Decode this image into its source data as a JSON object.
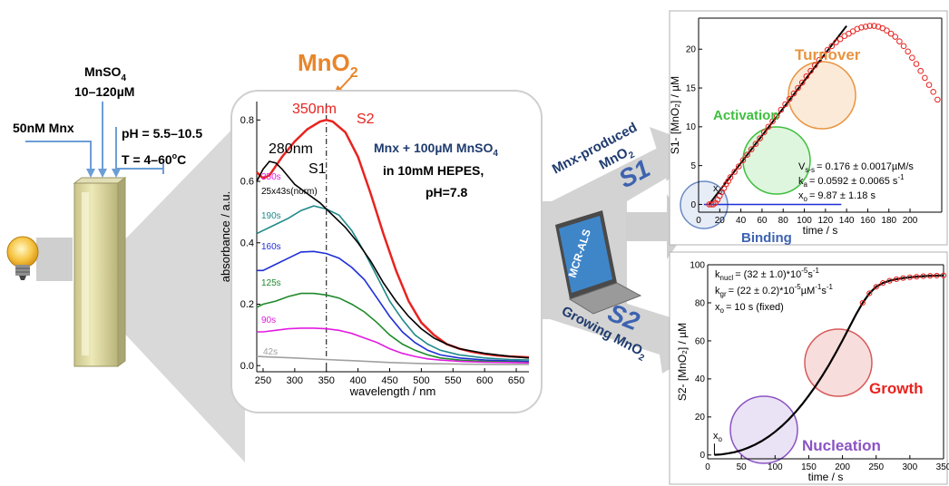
{
  "left": {
    "reagent": {
      "name": "MnSO",
      "sub": "4",
      "range": "10–120µM"
    },
    "enzyme": "50nM Mnx",
    "ph": "pH = 5.5–10.5",
    "temp": {
      "prefix": "T = 4–60",
      "sup": "o",
      "suffix": "C"
    }
  },
  "center": {
    "product": {
      "name": "MnO",
      "sub": "2"
    },
    "peak350": "350nm",
    "peak280": "280nm",
    "s1": "S1",
    "s2": "S2",
    "norm_label": "25x43s(norm)",
    "conditions": {
      "line1a": "Mnx + 100µM MnSO",
      "line1sub": "4",
      "line2": "in  10mM HEPES,",
      "line3": "pH=7.8"
    },
    "time_labels": [
      "350s",
      "190s",
      "160s",
      "125s",
      "90s",
      "42s"
    ]
  },
  "middle": {
    "software": "MCR-ALS",
    "arrow_s1": {
      "line1": "Mnx-produced",
      "line2": "MnO",
      "line2sub": "2",
      "tag": "S1"
    },
    "arrow_s2": {
      "line1": "Growing MnO",
      "line1sub": "2",
      "tag": "S2"
    }
  },
  "colors": {
    "red": "#e8231f",
    "teal": "#1f8a8a",
    "blue": "#1f2fd6",
    "green": "#1e8a2a",
    "magenta": "#e21ce0",
    "gray": "#a0a0a0",
    "navy": "#1f3b6e",
    "orange": "#e89440",
    "phases_green": "#3fbf3f",
    "purple": "#8b53c4"
  },
  "chart_data": [
    {
      "type": "line",
      "xlabel": "wavelength / nm",
      "ylabel": "absorbance / a.u.",
      "xlim": [
        240,
        670
      ],
      "ylim": [
        -0.02,
        0.86
      ],
      "xticks": [
        250,
        300,
        350,
        400,
        450,
        500,
        550,
        600,
        650
      ],
      "yticks": [
        0.0,
        0.2,
        0.4,
        0.6,
        0.8
      ],
      "series": [
        {
          "name": "350s",
          "color": "#e8231f",
          "x": [
            240,
            250,
            260,
            280,
            300,
            320,
            340,
            350,
            360,
            380,
            400,
            420,
            440,
            460,
            480,
            500,
            520,
            540,
            560,
            580,
            600,
            620,
            640,
            660,
            670
          ],
          "y": [
            0.63,
            0.61,
            0.62,
            0.68,
            0.73,
            0.77,
            0.795,
            0.8,
            0.795,
            0.76,
            0.68,
            0.56,
            0.43,
            0.31,
            0.21,
            0.14,
            0.1,
            0.07,
            0.055,
            0.045,
            0.038,
            0.033,
            0.03,
            0.028,
            0.027
          ]
        },
        {
          "name": "190s",
          "color": "#1f8a8a",
          "x": [
            240,
            250,
            270,
            290,
            310,
            330,
            350,
            370,
            390,
            410,
            430,
            450,
            470,
            490,
            510,
            530,
            560,
            600,
            640,
            670
          ],
          "y": [
            0.43,
            0.44,
            0.46,
            0.48,
            0.505,
            0.52,
            0.51,
            0.49,
            0.44,
            0.37,
            0.29,
            0.21,
            0.15,
            0.1,
            0.07,
            0.05,
            0.035,
            0.025,
            0.02,
            0.018
          ]
        },
        {
          "name": "160s",
          "color": "#1f2fd6",
          "x": [
            240,
            250,
            270,
            290,
            310,
            330,
            350,
            370,
            390,
            410,
            430,
            450,
            470,
            490,
            510,
            530,
            560,
            600,
            640,
            670
          ],
          "y": [
            0.31,
            0.31,
            0.33,
            0.35,
            0.37,
            0.372,
            0.365,
            0.35,
            0.32,
            0.28,
            0.22,
            0.16,
            0.11,
            0.075,
            0.05,
            0.035,
            0.025,
            0.018,
            0.015,
            0.013
          ]
        },
        {
          "name": "125s",
          "color": "#1e8a2a",
          "x": [
            240,
            250,
            270,
            290,
            310,
            330,
            350,
            370,
            390,
            410,
            430,
            450,
            470,
            490,
            510,
            530,
            560,
            600,
            640,
            670
          ],
          "y": [
            0.19,
            0.2,
            0.21,
            0.225,
            0.235,
            0.235,
            0.23,
            0.22,
            0.2,
            0.175,
            0.14,
            0.1,
            0.07,
            0.05,
            0.035,
            0.025,
            0.018,
            0.014,
            0.012,
            0.01
          ]
        },
        {
          "name": "90s",
          "color": "#e21ce0",
          "x": [
            240,
            250,
            270,
            290,
            310,
            330,
            350,
            370,
            390,
            410,
            430,
            450,
            470,
            490,
            510,
            530,
            560,
            600,
            640,
            670
          ],
          "y": [
            0.11,
            0.11,
            0.115,
            0.12,
            0.122,
            0.122,
            0.12,
            0.115,
            0.105,
            0.09,
            0.075,
            0.055,
            0.04,
            0.03,
            0.022,
            0.018,
            0.014,
            0.011,
            0.01,
            0.009
          ]
        },
        {
          "name": "42s",
          "color": "#a0a0a0",
          "x": [
            240,
            260,
            300,
            350,
            400,
            450,
            500,
            560,
            620,
            670
          ],
          "y": [
            0.03,
            0.028,
            0.025,
            0.02,
            0.015,
            0.01,
            0.007,
            0.005,
            0.004,
            0.004
          ]
        },
        {
          "name": "25x43s(norm)",
          "color": "#000000",
          "x": [
            240,
            250,
            260,
            270,
            280,
            290,
            300,
            320,
            340,
            350,
            360,
            380,
            400,
            420,
            440,
            460,
            480,
            500,
            520,
            540,
            560,
            600,
            640,
            670
          ],
          "y": [
            0.6,
            0.64,
            0.665,
            0.66,
            0.64,
            0.615,
            0.59,
            0.56,
            0.53,
            0.51,
            0.49,
            0.45,
            0.4,
            0.34,
            0.27,
            0.21,
            0.16,
            0.12,
            0.09,
            0.07,
            0.055,
            0.04,
            0.03,
            0.025
          ]
        }
      ]
    },
    {
      "type": "scatter",
      "xlabel": "time / s",
      "ylabel": "S1- [MnO₂] / µM",
      "xlim": [
        0,
        230
      ],
      "ylim": [
        -1,
        24
      ],
      "xticks": [
        0,
        20,
        40,
        60,
        80,
        100,
        120,
        140,
        160,
        180,
        200
      ],
      "yticks": [
        0,
        5,
        10,
        15,
        20
      ],
      "series": [
        {
          "name": "data",
          "color": "#e8231f",
          "x": [
            10,
            12,
            14,
            16,
            18,
            20,
            22,
            24,
            26,
            28,
            30,
            34,
            38,
            42,
            46,
            50,
            54,
            58,
            62,
            66,
            70,
            74,
            78,
            82,
            86,
            90,
            94,
            98,
            102,
            106,
            110,
            114,
            118,
            122,
            126,
            130,
            134,
            138,
            142,
            146,
            150,
            154,
            158,
            162,
            166,
            170,
            174,
            178,
            182,
            186,
            190,
            194,
            198,
            202,
            206,
            210,
            214,
            218,
            222,
            226
          ],
          "y": [
            0,
            0,
            0,
            0.2,
            0.6,
            1.1,
            1.6,
            2.1,
            2.6,
            3.0,
            3.5,
            4.2,
            4.9,
            5.7,
            6.4,
            7.1,
            7.8,
            8.5,
            9.3,
            10.0,
            10.7,
            11.4,
            12.2,
            12.9,
            13.6,
            14.3,
            15.0,
            15.7,
            16.5,
            17.2,
            17.9,
            18.6,
            19.3,
            19.9,
            20.4,
            20.9,
            21.3,
            21.7,
            22.0,
            22.3,
            22.6,
            22.8,
            22.9,
            23.0,
            23.0,
            22.9,
            22.7,
            22.4,
            22.0,
            21.6,
            21.0,
            20.4,
            19.7,
            18.9,
            18.1,
            17.2,
            16.3,
            15.4,
            14.5,
            13.5
          ]
        },
        {
          "name": "fit",
          "color": "#000000",
          "x": [
            9.87,
            140
          ],
          "y": [
            0,
            23.0
          ]
        }
      ],
      "annotations": {
        "vss": "V",
        "vss_sub": "s-s",
        "vss_val": "= 0.176 ± 0.0017µM/s",
        "ka": "k",
        "ka_sub": "a",
        "ka_val": "= 0.0592 ± 0.0065 s",
        "ka_sup": "-1",
        "xo": "x",
        "xo_sub": "o",
        "xo_val": "= 9.87 ± 1.18 s",
        "x0_marker": "x",
        "x0_marker_sub": "o"
      },
      "phases": [
        "Turnover",
        "Activation",
        "Binding"
      ]
    },
    {
      "type": "scatter",
      "xlabel": "time / s",
      "ylabel": "S2- [MnO₂] / µM",
      "xlim": [
        0,
        350
      ],
      "ylim": [
        -2,
        100
      ],
      "xticks": [
        0,
        50,
        100,
        150,
        200,
        250,
        300,
        350
      ],
      "yticks": [
        0,
        20,
        40,
        60,
        80,
        100
      ],
      "series": [
        {
          "name": "data",
          "color": "#e8231f",
          "x": [
            10,
            20,
            30,
            40,
            50,
            60,
            70,
            80,
            90,
            100,
            110,
            120,
            130,
            140,
            150,
            160,
            170,
            180,
            190,
            200,
            210,
            220,
            230,
            240,
            250,
            260,
            270,
            280,
            290,
            300,
            310,
            320,
            330,
            340,
            350
          ],
          "y": [
            0.1,
            0.3,
            0.8,
            1.5,
            2.5,
            3.8,
            5.4,
            7.3,
            9.6,
            12.2,
            15.2,
            18.6,
            22.4,
            26.6,
            31.2,
            36.2,
            41.6,
            47.4,
            53.6,
            60.2,
            67.0,
            73.8,
            80.0,
            85.0,
            88.4,
            90.4,
            91.6,
            92.4,
            93.0,
            93.4,
            93.7,
            94.0,
            94.2,
            94.3,
            94.4
          ]
        }
      ],
      "annotations": {
        "knucl": "k",
        "knucl_sub": "nucl",
        "knucl_val": "= (32 ± 1.0)*10",
        "knucl_sup": "-5",
        "knucl_unit": "s",
        "knucl_unit_sup": "-1",
        "kgr": "k",
        "kgr_sub": "gr",
        "kgr_val": "= (22 ± 0.2)*10",
        "kgr_sup": "-5",
        "kgr_unit": "µM",
        "kgr_unit_sup": "-1",
        "kgr_unit2": "s",
        "kgr_unit2_sup": "-1",
        "xo": "x",
        "xo_sub": "o",
        "xo_val": "= 10 s (fixed)",
        "x0_marker": "x",
        "x0_marker_sub": "o"
      },
      "phases": [
        "Growth",
        "Nucleation"
      ]
    }
  ]
}
